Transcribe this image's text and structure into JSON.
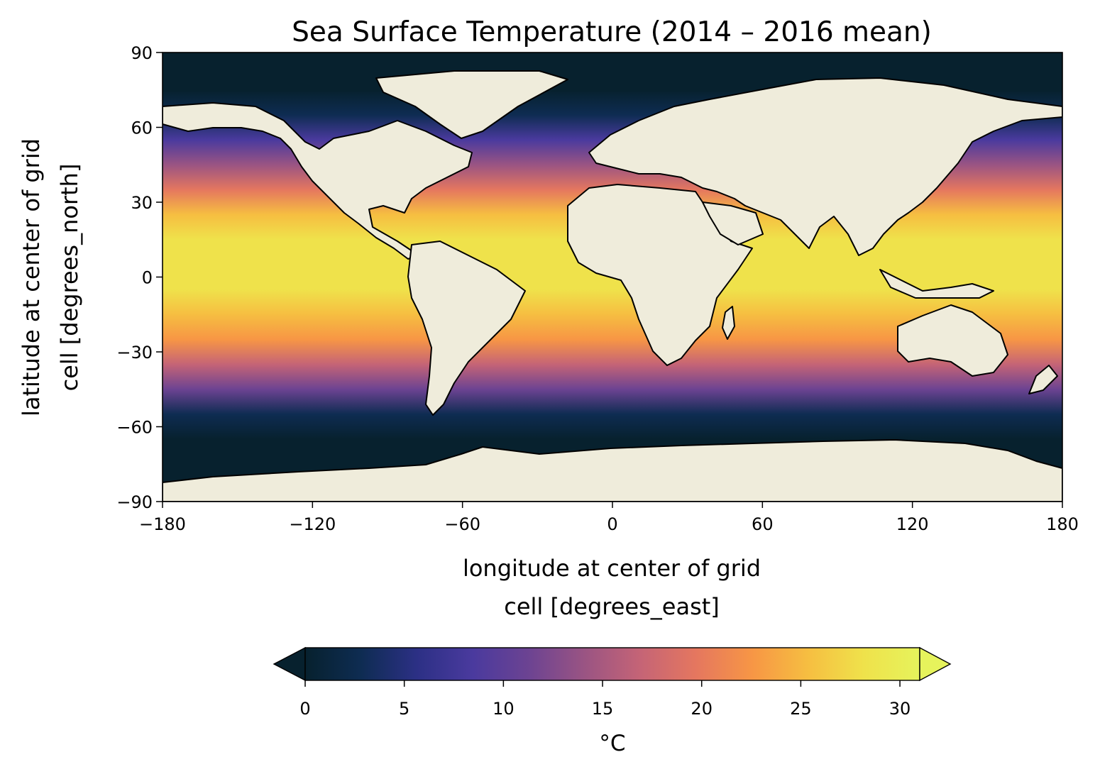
{
  "title": "Sea Surface Temperature (2014 – 2016 mean)",
  "x_axis": {
    "label_line1": "longitude at center of grid",
    "label_line2": "cell [degrees_east]",
    "ticks": [
      {
        "value": -180,
        "label": "−180"
      },
      {
        "value": -120,
        "label": "−120"
      },
      {
        "value": -60,
        "label": "−60"
      },
      {
        "value": 0,
        "label": "0"
      },
      {
        "value": 60,
        "label": "60"
      },
      {
        "value": 120,
        "label": "120"
      },
      {
        "value": 180,
        "label": "180"
      }
    ]
  },
  "y_axis": {
    "label_line1": "latitude at center of grid",
    "label_line2": "cell [degrees_north]",
    "ticks": [
      {
        "value": 90,
        "label": "90"
      },
      {
        "value": 60,
        "label": "60"
      },
      {
        "value": 30,
        "label": "30"
      },
      {
        "value": 0,
        "label": "0"
      },
      {
        "value": -30,
        "label": "−30"
      },
      {
        "value": -60,
        "label": "−60"
      },
      {
        "value": -90,
        "label": "−90"
      }
    ]
  },
  "colorbar": {
    "label": "°C",
    "range": [
      0,
      31
    ],
    "extend": "both",
    "ticks": [
      {
        "value": 0,
        "label": "0"
      },
      {
        "value": 5,
        "label": "5"
      },
      {
        "value": 10,
        "label": "10"
      },
      {
        "value": 15,
        "label": "15"
      },
      {
        "value": 20,
        "label": "20"
      },
      {
        "value": 25,
        "label": "25"
      },
      {
        "value": 30,
        "label": "30"
      }
    ],
    "colors": [
      "#07212e",
      "#0e2c52",
      "#2c3085",
      "#4a3a9e",
      "#6c4392",
      "#9a5483",
      "#c56476",
      "#e5775f",
      "#f79645",
      "#f6be41",
      "#efe24b",
      "#e6f35c"
    ]
  },
  "land_color": "#efecdb",
  "coastline_color": "#000000",
  "missing_color": "#ffffff",
  "chart_data": {
    "type": "heatmap",
    "title": "Sea Surface Temperature (2014 – 2016 mean)",
    "variable_unit": "°C",
    "xlabel": "longitude at center of grid cell [degrees_east]",
    "ylabel": "latitude at center of grid cell [degrees_north]",
    "xlim": [
      -180,
      180
    ],
    "ylim": [
      -90,
      90
    ],
    "clim": [
      0,
      31
    ],
    "zonal_mean_sst": [
      {
        "lat": 85,
        "value": 0
      },
      {
        "lat": 75,
        "value": 0
      },
      {
        "lat": 65,
        "value": 3
      },
      {
        "lat": 55,
        "value": 8
      },
      {
        "lat": 45,
        "value": 13
      },
      {
        "lat": 35,
        "value": 20
      },
      {
        "lat": 25,
        "value": 24
      },
      {
        "lat": 15,
        "value": 27
      },
      {
        "lat": 5,
        "value": 28
      },
      {
        "lat": -5,
        "value": 28
      },
      {
        "lat": -15,
        "value": 26
      },
      {
        "lat": -25,
        "value": 22
      },
      {
        "lat": -35,
        "value": 18
      },
      {
        "lat": -45,
        "value": 11
      },
      {
        "lat": -55,
        "value": 4
      },
      {
        "lat": -65,
        "value": 0
      },
      {
        "lat": -75,
        "value": 0
      }
    ]
  }
}
